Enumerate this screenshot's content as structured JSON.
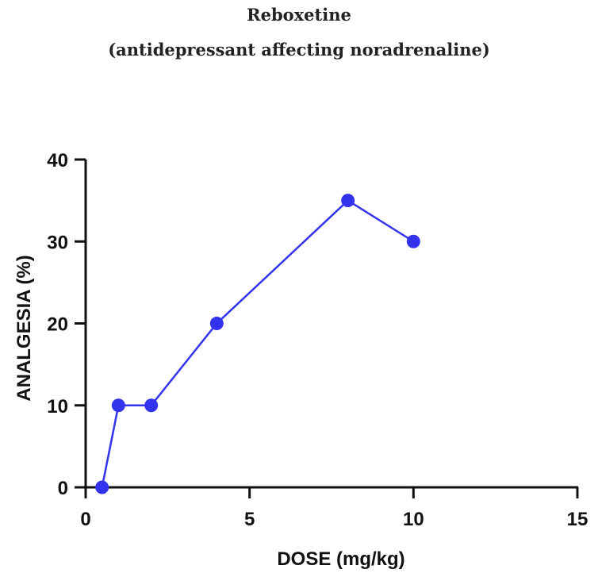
{
  "chart_data": {
    "type": "line",
    "title": "Reboxetine",
    "subtitle": "(antidepressant affecting noradrenaline)",
    "xlabel": "DOSE (mg/kg)",
    "ylabel": "ANALGESIA (%)",
    "xlim": [
      0,
      15
    ],
    "ylim": [
      0,
      40
    ],
    "x_ticks": [
      0,
      5,
      10,
      15
    ],
    "y_ticks": [
      0,
      10,
      20,
      30,
      40
    ],
    "grid": false,
    "series": [
      {
        "color": "#3333ee",
        "x": [
          0.5,
          1,
          2,
          4,
          8,
          10
        ],
        "y": [
          0,
          10,
          10,
          20,
          35,
          30
        ]
      }
    ]
  }
}
